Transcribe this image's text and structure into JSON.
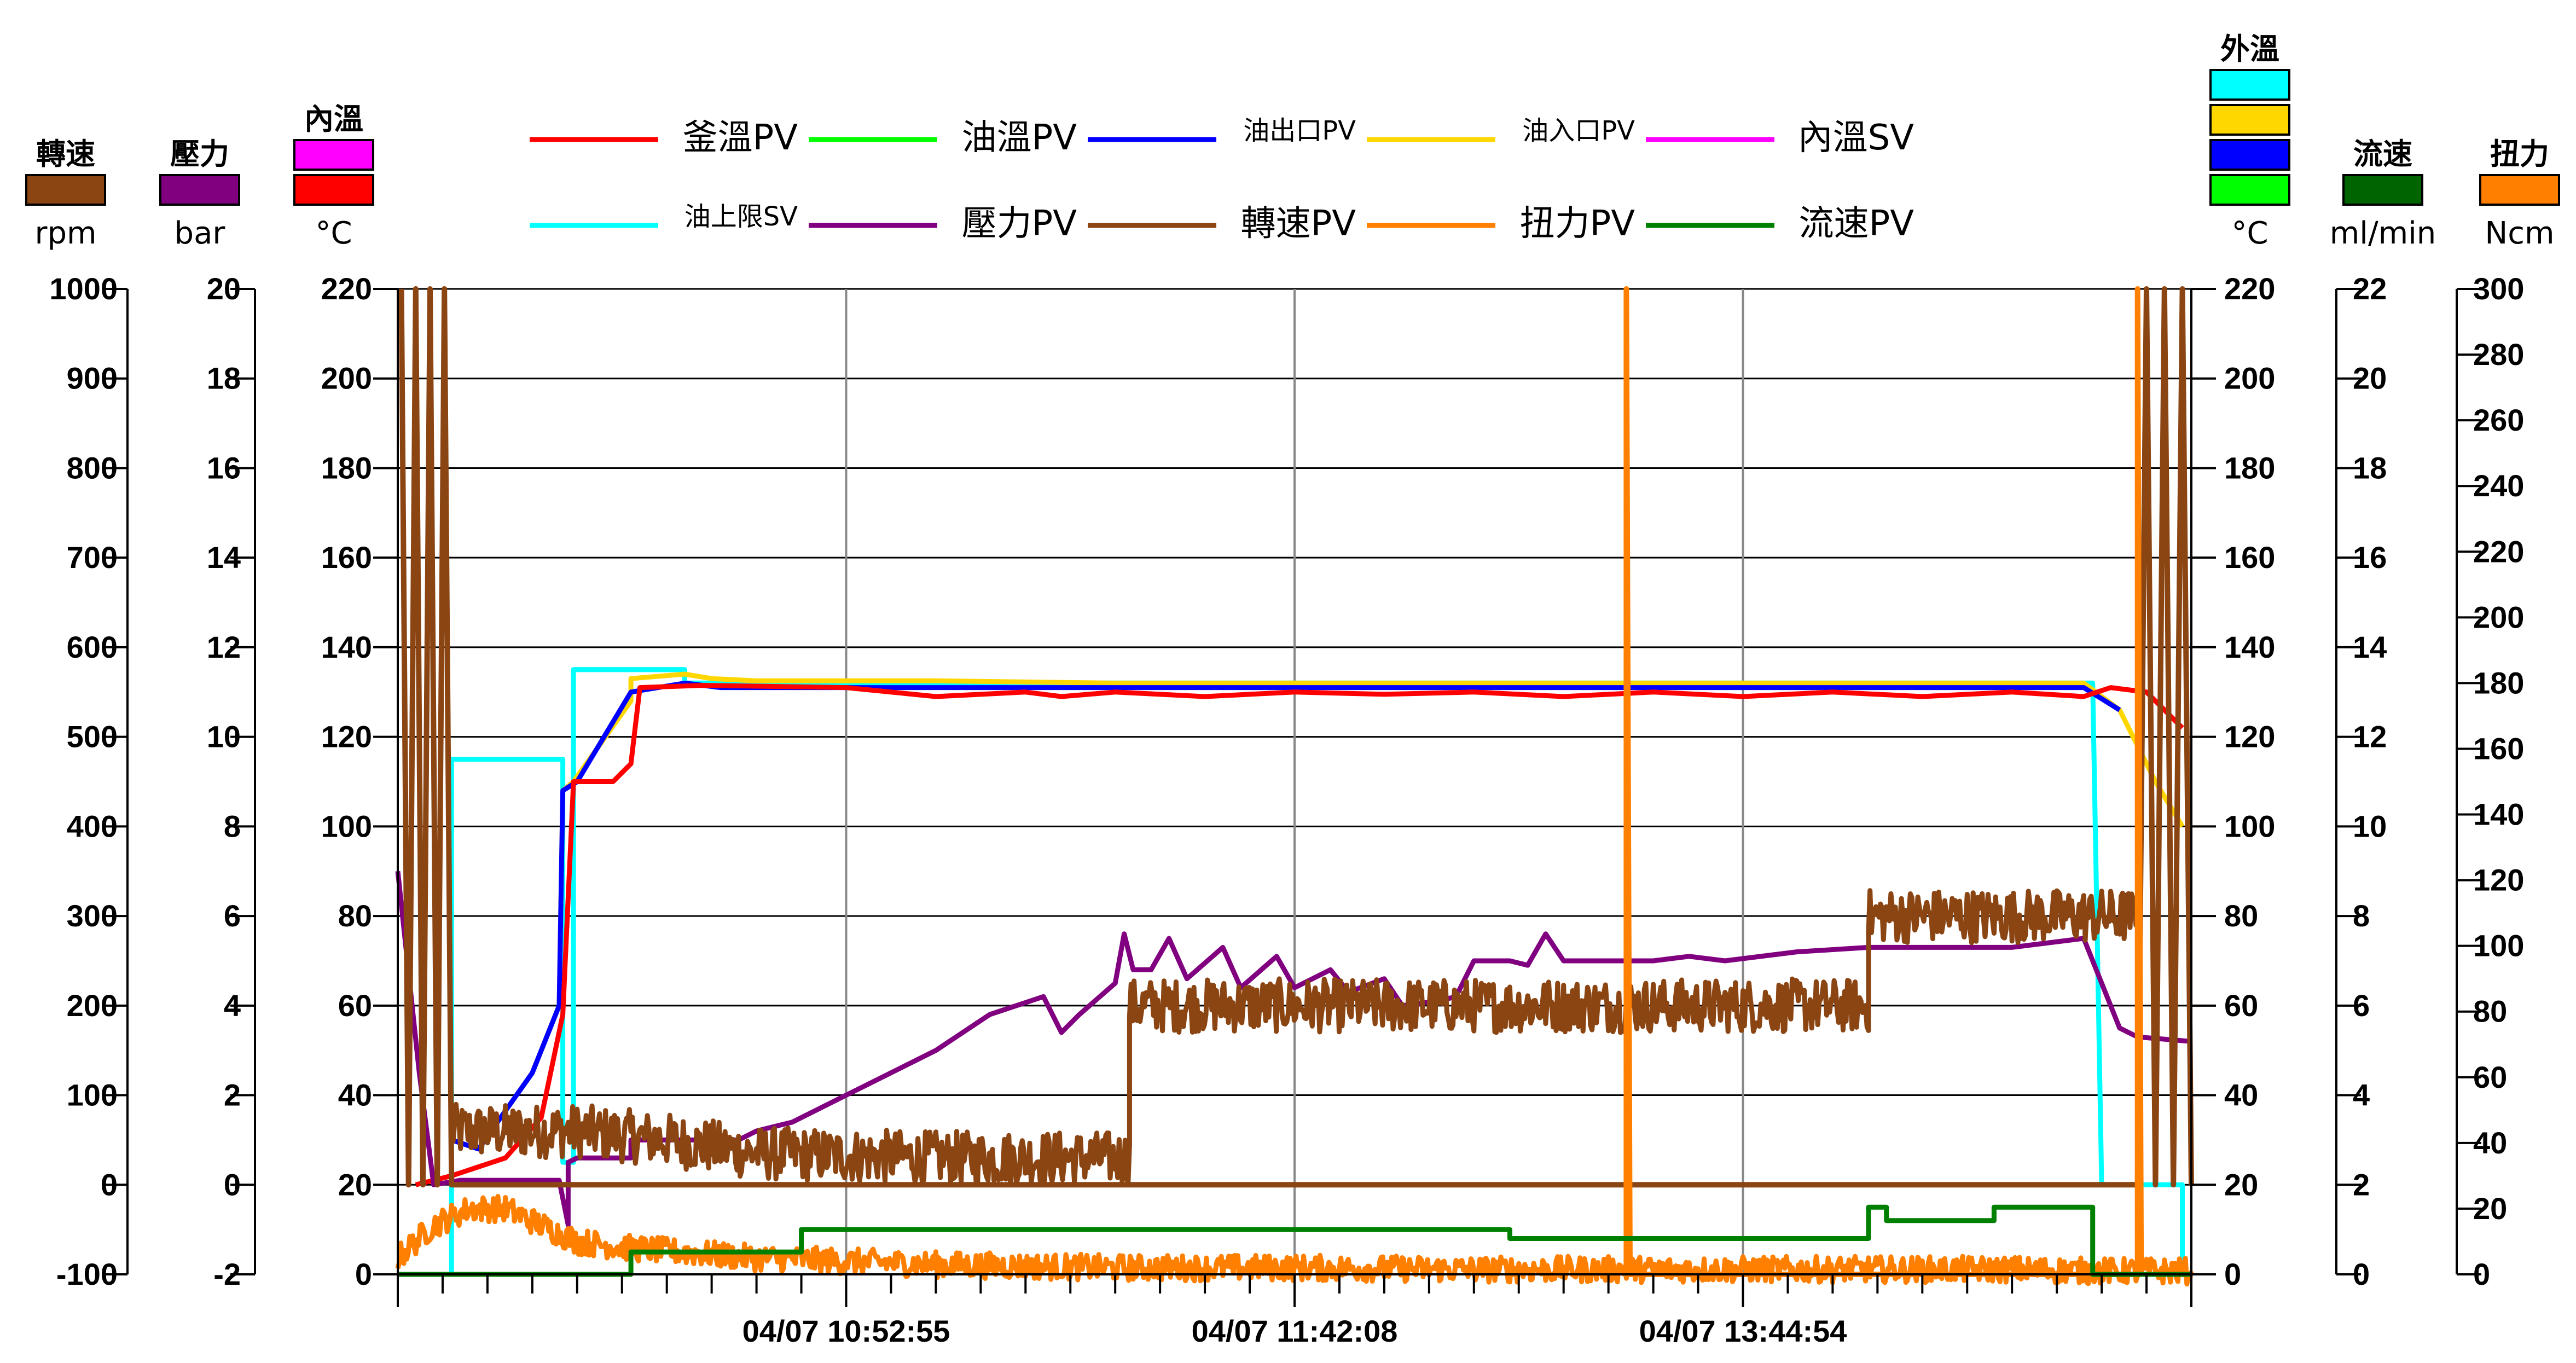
{
  "chart_data": {
    "type": "line",
    "x_ticks": [
      "04/07 10:52:55",
      "04/07 11:42:08",
      "04/07 13:44:54"
    ],
    "left_axes": [
      {
        "title": "轉速",
        "unit": "rpm",
        "swatch_colors": [
          "#8B4513"
        ],
        "range": [
          -100,
          1000
        ],
        "ticks": [
          "-100",
          "0",
          "100",
          "200",
          "300",
          "400",
          "500",
          "600",
          "700",
          "800",
          "900",
          "1000"
        ]
      },
      {
        "title": "壓力",
        "unit": "bar",
        "swatch_colors": [
          "#800080"
        ],
        "range": [
          -2,
          20
        ],
        "ticks": [
          "-2",
          "0",
          "2",
          "4",
          "6",
          "8",
          "10",
          "12",
          "14",
          "16",
          "18",
          "20"
        ]
      },
      {
        "title": "內溫",
        "unit": "°C",
        "swatch_colors": [
          "#FF00FF",
          "#FF0000"
        ],
        "range": [
          0,
          220
        ],
        "ticks": [
          "0",
          "20",
          "40",
          "60",
          "80",
          "100",
          "120",
          "140",
          "160",
          "180",
          "200",
          "220"
        ]
      }
    ],
    "right_axes": [
      {
        "title": "外溫",
        "unit": "°C",
        "swatch_colors": [
          "#00FFFF",
          "#FFD700",
          "#0000FF",
          "#00FF00"
        ],
        "range": [
          0,
          220
        ],
        "ticks": [
          "0",
          "20",
          "40",
          "60",
          "80",
          "100",
          "120",
          "140",
          "160",
          "180",
          "200",
          "220"
        ]
      },
      {
        "title": "流速",
        "unit": "ml/min",
        "swatch_colors": [
          "#006400"
        ],
        "range": [
          0,
          22
        ],
        "ticks": [
          "0",
          "2",
          "4",
          "6",
          "8",
          "10",
          "12",
          "14",
          "16",
          "18",
          "20",
          "22"
        ]
      },
      {
        "title": "扭力",
        "unit": "Ncm",
        "swatch_colors": [
          "#FF7F00"
        ],
        "range": [
          0,
          300
        ],
        "ticks": [
          "0",
          "20",
          "40",
          "60",
          "80",
          "100",
          "120",
          "140",
          "160",
          "180",
          "200",
          "220",
          "240",
          "260",
          "280",
          "300"
        ]
      }
    ],
    "legend": {
      "row1": [
        {
          "name": "釜溫PV",
          "color": "#FF0000"
        },
        {
          "name": "油溫PV",
          "color": "#00FF00"
        },
        {
          "name": "油出口PV",
          "color": "#0000FF"
        },
        {
          "name": "油入口PV",
          "color": "#FFD700"
        },
        {
          "name": "內溫SV",
          "color": "#FF00FF"
        }
      ],
      "row2": [
        {
          "name": "油上限SV",
          "color": "#00FFFF"
        },
        {
          "name": "壓力PV",
          "color": "#800080"
        },
        {
          "name": "轉速PV",
          "color": "#8B4513"
        },
        {
          "name": "扭力PV",
          "color": "#FF7F00"
        },
        {
          "name": "流速PV",
          "color": "#008000"
        }
      ]
    },
    "series": [
      {
        "name": "油上限SV",
        "axis": "temp",
        "color": "#00FFFF",
        "step": true,
        "points": [
          [
            0,
            0
          ],
          [
            0.03,
            0
          ],
          [
            0.03,
            115
          ],
          [
            0.092,
            115
          ],
          [
            0.092,
            25
          ],
          [
            0.098,
            25
          ],
          [
            0.098,
            135
          ],
          [
            0.16,
            135
          ],
          [
            0.16,
            132
          ],
          [
            0.945,
            132
          ],
          [
            0.95,
            20
          ],
          [
            0.995,
            20
          ],
          [
            0.995,
            0
          ],
          [
            1,
            0
          ]
        ]
      },
      {
        "name": "油上限SV",
        "axis": "temp",
        "color": "#00FFFF",
        "step": true,
        "points": [
          [
            0.098,
            135
          ],
          [
            0.16,
            135
          ],
          [
            0.16,
            132
          ],
          [
            0.945,
            132
          ]
        ]
      },
      {
        "name": "油入口PV",
        "axis": "temp",
        "color": "#FFD700",
        "points": [
          [
            0.03,
            30
          ],
          [
            0.045,
            28
          ],
          [
            0.075,
            45
          ],
          [
            0.09,
            60
          ],
          [
            0.092,
            108
          ],
          [
            0.098,
            110
          ],
          [
            0.13,
            128
          ],
          [
            0.13,
            133
          ],
          [
            0.16,
            134
          ],
          [
            0.175,
            133
          ],
          [
            0.2,
            132.5
          ],
          [
            0.3,
            132.5
          ],
          [
            0.4,
            132
          ],
          [
            0.6,
            132
          ],
          [
            0.8,
            132
          ],
          [
            0.94,
            132
          ],
          [
            0.96,
            126
          ],
          [
            0.98,
            110
          ],
          [
            0.995,
            100
          ]
        ]
      },
      {
        "name": "油出口PV",
        "axis": "temp",
        "color": "#0000FF",
        "points": [
          [
            0.03,
            30
          ],
          [
            0.045,
            28
          ],
          [
            0.075,
            45
          ],
          [
            0.09,
            60
          ],
          [
            0.092,
            108
          ],
          [
            0.1,
            110
          ],
          [
            0.13,
            130
          ],
          [
            0.16,
            132
          ],
          [
            0.18,
            131
          ],
          [
            0.3,
            131
          ],
          [
            0.5,
            131
          ],
          [
            0.7,
            131
          ],
          [
            0.9,
            131
          ],
          [
            0.94,
            131
          ],
          [
            0.96,
            126
          ]
        ]
      },
      {
        "name": "釜溫PV",
        "axis": "temp",
        "color": "#FF0000",
        "points": [
          [
            0.01,
            20
          ],
          [
            0.03,
            22
          ],
          [
            0.06,
            26
          ],
          [
            0.08,
            35
          ],
          [
            0.092,
            58
          ],
          [
            0.098,
            110
          ],
          [
            0.12,
            110
          ],
          [
            0.13,
            114
          ],
          [
            0.135,
            131
          ],
          [
            0.17,
            131.5
          ],
          [
            0.25,
            131
          ],
          [
            0.3,
            129
          ],
          [
            0.35,
            130
          ],
          [
            0.37,
            129
          ],
          [
            0.4,
            130
          ],
          [
            0.45,
            129
          ],
          [
            0.5,
            130
          ],
          [
            0.55,
            129.5
          ],
          [
            0.6,
            130
          ],
          [
            0.65,
            129
          ],
          [
            0.7,
            130
          ],
          [
            0.75,
            129
          ],
          [
            0.8,
            130
          ],
          [
            0.85,
            129
          ],
          [
            0.9,
            130
          ],
          [
            0.94,
            129
          ],
          [
            0.955,
            131
          ],
          [
            0.975,
            130
          ],
          [
            0.995,
            122
          ]
        ]
      },
      {
        "name": "壓力PV",
        "axis": "pressure",
        "color": "#800080",
        "points": [
          [
            0,
            7
          ],
          [
            0.012,
            2.5
          ],
          [
            0.02,
            0
          ],
          [
            0.035,
            0.1
          ],
          [
            0.09,
            0.1
          ],
          [
            0.095,
            -0.9
          ],
          [
            0.095,
            0.5
          ],
          [
            0.1,
            0.6
          ],
          [
            0.13,
            0.6
          ],
          [
            0.13,
            1
          ],
          [
            0.19,
            1
          ],
          [
            0.2,
            1.2
          ],
          [
            0.22,
            1.4
          ],
          [
            0.25,
            2
          ],
          [
            0.3,
            3
          ],
          [
            0.33,
            3.8
          ],
          [
            0.36,
            4.2
          ],
          [
            0.37,
            3.4
          ],
          [
            0.38,
            3.8
          ],
          [
            0.4,
            4.5
          ],
          [
            0.405,
            5.6
          ],
          [
            0.41,
            4.8
          ],
          [
            0.42,
            4.8
          ],
          [
            0.43,
            5.5
          ],
          [
            0.44,
            4.6
          ],
          [
            0.46,
            5.3
          ],
          [
            0.47,
            4.4
          ],
          [
            0.49,
            5.1
          ],
          [
            0.5,
            4.4
          ],
          [
            0.52,
            4.8
          ],
          [
            0.53,
            4.3
          ],
          [
            0.55,
            4.6
          ],
          [
            0.56,
            4
          ],
          [
            0.58,
            4.1
          ],
          [
            0.59,
            4.2
          ],
          [
            0.6,
            5
          ],
          [
            0.62,
            5
          ],
          [
            0.63,
            4.9
          ],
          [
            0.64,
            5.6
          ],
          [
            0.65,
            5
          ],
          [
            0.67,
            5
          ],
          [
            0.7,
            5
          ],
          [
            0.72,
            5.1
          ],
          [
            0.74,
            5
          ],
          [
            0.78,
            5.2
          ],
          [
            0.82,
            5.3
          ],
          [
            0.86,
            5.3
          ],
          [
            0.9,
            5.3
          ],
          [
            0.94,
            5.5
          ],
          [
            0.96,
            3.5
          ],
          [
            0.97,
            3.3
          ],
          [
            1,
            3.2
          ]
        ]
      },
      {
        "name": "轉速PV",
        "axis": "rpm",
        "color": "#8B4513",
        "band": 30,
        "points": [
          [
            0.03,
            60
          ],
          [
            0.1,
            60
          ],
          [
            0.15,
            50
          ],
          [
            0.2,
            35
          ],
          [
            0.3,
            30
          ],
          [
            0.408,
            30
          ],
          [
            0.408,
            200
          ],
          [
            0.6,
            200
          ],
          [
            0.82,
            200
          ],
          [
            0.82,
            300
          ],
          [
            0.97,
            300
          ]
        ]
      },
      {
        "name": "轉速PV",
        "axis": "rpm",
        "color": "#8B4513",
        "spikes": true,
        "points": [
          [
            0.002,
            1000
          ],
          [
            0.006,
            0
          ],
          [
            0.01,
            1000
          ],
          [
            0.014,
            0
          ],
          [
            0.018,
            1000
          ],
          [
            0.022,
            0
          ],
          [
            0.026,
            1000
          ],
          [
            0.03,
            0
          ],
          [
            0.97,
            0
          ],
          [
            0.975,
            1000
          ],
          [
            0.98,
            0
          ],
          [
            0.985,
            1000
          ],
          [
            0.99,
            0
          ],
          [
            0.995,
            1000
          ],
          [
            1,
            0
          ]
        ]
      },
      {
        "name": "扭力PV",
        "axis": "torque",
        "color": "#FF7F00",
        "noise": 4,
        "points": [
          [
            0,
            5
          ],
          [
            0.02,
            15
          ],
          [
            0.04,
            20
          ],
          [
            0.06,
            20
          ],
          [
            0.1,
            10
          ],
          [
            0.13,
            8
          ],
          [
            0.2,
            5
          ],
          [
            0.3,
            3
          ],
          [
            0.4,
            2
          ],
          [
            0.5,
            2
          ],
          [
            0.6,
            1.5
          ],
          [
            0.7,
            1.5
          ],
          [
            0.8,
            1.5
          ],
          [
            0.9,
            1.5
          ],
          [
            0.95,
            1
          ],
          [
            1,
            1
          ]
        ]
      },
      {
        "name": "扭力PV",
        "axis": "torque",
        "color": "#FF7F00",
        "spikes": true,
        "points": [
          [
            0.685,
            0
          ],
          [
            0.685,
            300
          ],
          [
            0.687,
            0
          ],
          [
            0.97,
            0
          ],
          [
            0.97,
            300
          ],
          [
            0.972,
            0
          ]
        ]
      },
      {
        "name": "流速PV",
        "axis": "flow",
        "color": "#008000",
        "step": true,
        "points": [
          [
            0,
            0
          ],
          [
            0.13,
            0
          ],
          [
            0.13,
            0.5
          ],
          [
            0.225,
            0.5
          ],
          [
            0.225,
            1
          ],
          [
            0.62,
            1
          ],
          [
            0.62,
            0.8
          ],
          [
            0.82,
            0.8
          ],
          [
            0.82,
            1.5
          ],
          [
            0.83,
            1.5
          ],
          [
            0.83,
            1.2
          ],
          [
            0.89,
            1.2
          ],
          [
            0.89,
            1.5
          ],
          [
            0.945,
            1.5
          ],
          [
            0.945,
            0
          ],
          [
            1,
            0
          ]
        ]
      }
    ]
  }
}
